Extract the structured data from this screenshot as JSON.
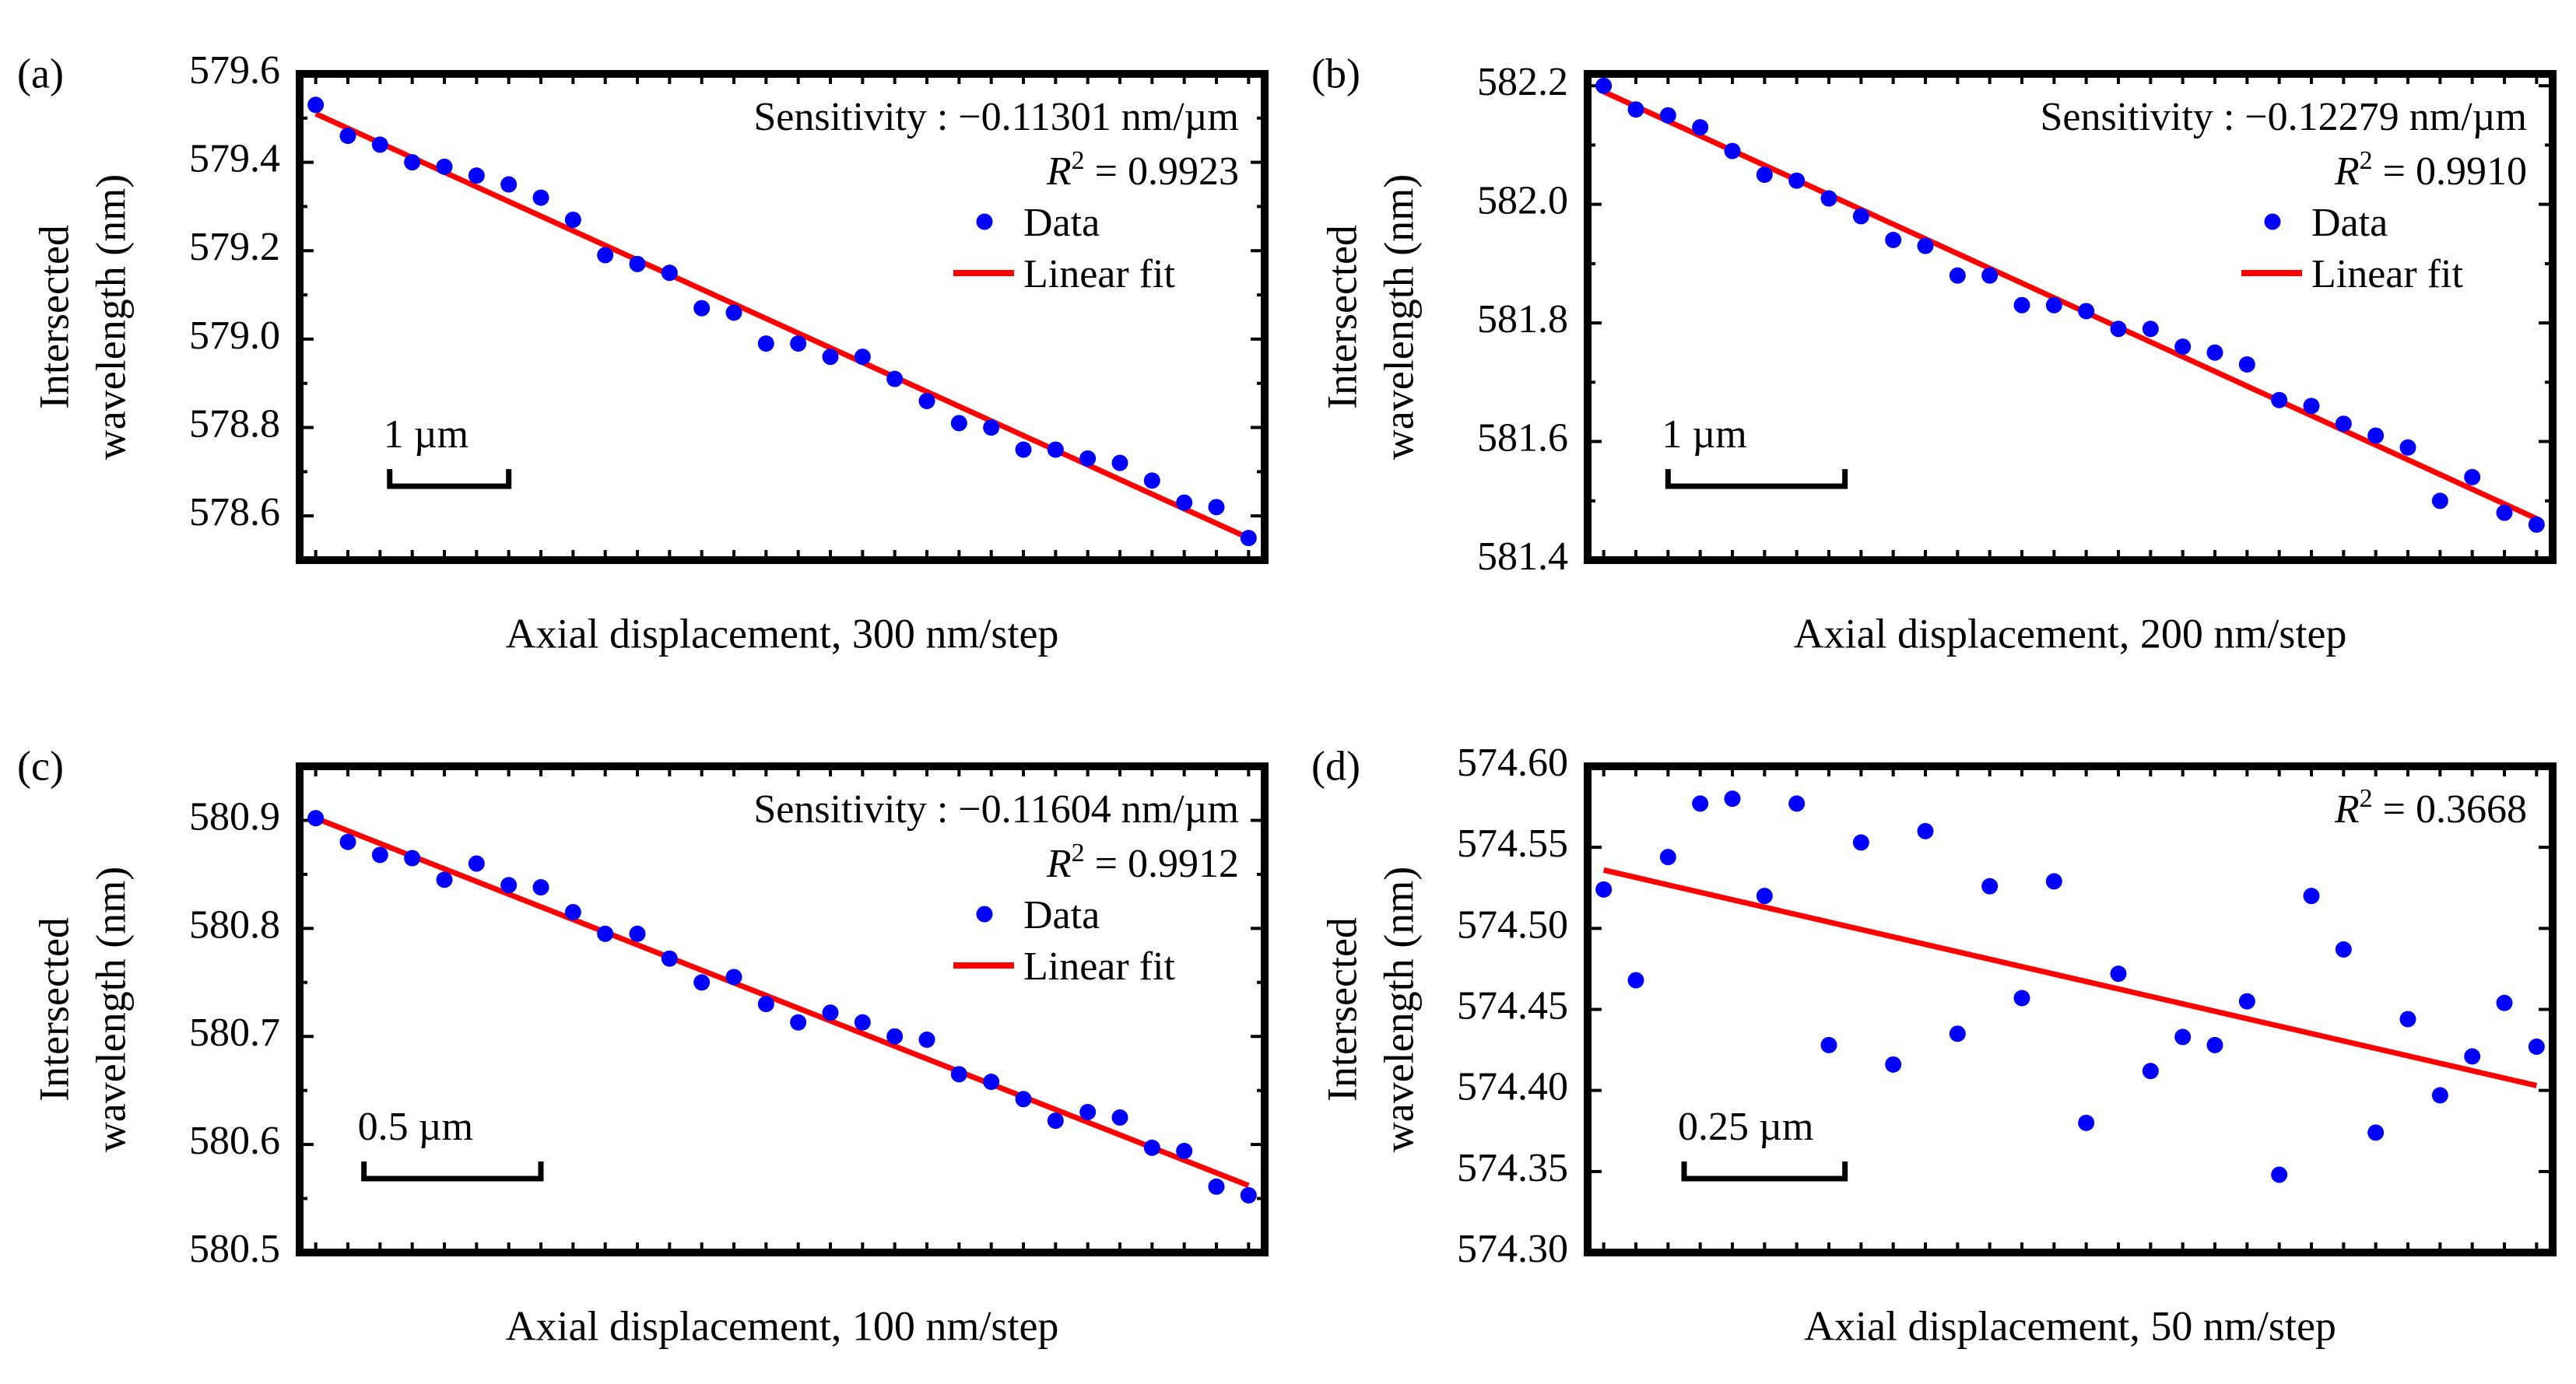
{
  "colors": {
    "data": "#0000ff",
    "fit": "#ff0000",
    "axis": "#000000"
  },
  "chart_data": [
    {
      "panel_label": "(a)",
      "type": "scatter",
      "title": "",
      "xlabel": "Axial displacement, 300 nm/step",
      "ylabel_lines": [
        "Intersected",
        "wavelength (nm)"
      ],
      "xlim": [
        -0.5,
        29.5
      ],
      "ylim": [
        578.5,
        579.6
      ],
      "yticks": [
        578.6,
        578.8,
        579.0,
        579.2,
        579.4,
        579.6
      ],
      "ytick_labels": [
        "578.6",
        "578.8",
        "579.0",
        "579.2",
        "579.4",
        "579.6"
      ],
      "yticks_minor": [
        578.5,
        578.7,
        578.9,
        579.1,
        579.3,
        579.5
      ],
      "scalebar": {
        "label": "1 µm",
        "x_start": 2.3,
        "x_end": 6.0
      },
      "annotations": {
        "sensitivity": "Sensitivity : −0.11301 nm/µm",
        "r2_value": "0.9923"
      },
      "legend": {
        "data": "Data",
        "fit": "Linear fit",
        "position": "top-right"
      },
      "series": [
        {
          "name": "Data",
          "kind": "points",
          "x": [
            0,
            1,
            2,
            3,
            4,
            5,
            6,
            7,
            8,
            9,
            10,
            11,
            12,
            13,
            14,
            15,
            16,
            17,
            18,
            19,
            20,
            21,
            22,
            23,
            24,
            25,
            26,
            27,
            28,
            29
          ],
          "y": [
            579.53,
            579.46,
            579.44,
            579.4,
            579.39,
            579.37,
            579.35,
            579.32,
            579.27,
            579.19,
            579.17,
            579.15,
            579.07,
            579.06,
            578.99,
            578.99,
            578.96,
            578.96,
            578.91,
            578.86,
            578.81,
            578.8,
            578.75,
            578.75,
            578.73,
            578.72,
            578.68,
            578.63,
            578.62,
            578.55
          ]
        },
        {
          "name": "Linear fit",
          "kind": "line",
          "x": [
            0,
            29
          ],
          "y": [
            579.51,
            578.55
          ]
        }
      ]
    },
    {
      "panel_label": "(b)",
      "type": "scatter",
      "title": "",
      "xlabel": "Axial displacement, 200 nm/step",
      "ylabel_lines": [
        "Intersected",
        "wavelength (nm)"
      ],
      "xlim": [
        -0.5,
        29.5
      ],
      "ylim": [
        581.4,
        582.22
      ],
      "yticks": [
        581.4,
        581.6,
        581.8,
        582.0,
        582.2
      ],
      "ytick_labels": [
        "581.4",
        "581.6",
        "581.8",
        "582.0",
        "582.2"
      ],
      "yticks_minor": [
        581.5,
        581.7,
        581.9,
        582.1
      ],
      "scalebar": {
        "label": "1 µm",
        "x_start": 2.0,
        "x_end": 7.5
      },
      "annotations": {
        "sensitivity": "Sensitivity : −0.12279 nm/µm",
        "r2_value": "0.9910"
      },
      "legend": {
        "data": "Data",
        "fit": "Linear fit",
        "position": "top-right"
      },
      "series": [
        {
          "name": "Data",
          "kind": "points",
          "x": [
            0,
            1,
            2,
            3,
            4,
            5,
            6,
            7,
            8,
            9,
            10,
            11,
            12,
            13,
            14,
            15,
            16,
            17,
            18,
            19,
            20,
            21,
            22,
            23,
            24,
            25,
            26,
            27,
            28,
            29
          ],
          "y": [
            582.2,
            582.16,
            582.15,
            582.13,
            582.09,
            582.05,
            582.04,
            582.01,
            581.98,
            581.94,
            581.93,
            581.88,
            581.88,
            581.83,
            581.83,
            581.82,
            581.79,
            581.79,
            581.76,
            581.75,
            581.73,
            581.67,
            581.66,
            581.63,
            581.61,
            581.59,
            581.5,
            581.54,
            581.48,
            581.46
          ]
        },
        {
          "name": "Linear fit",
          "kind": "line",
          "x": [
            0,
            29
          ],
          "y": [
            582.19,
            581.47
          ]
        }
      ]
    },
    {
      "panel_label": "(c)",
      "type": "scatter",
      "title": "",
      "xlabel": "Axial displacement, 100 nm/step",
      "ylabel_lines": [
        "Intersected",
        "wavelength (nm)"
      ],
      "xlim": [
        -0.5,
        29.5
      ],
      "ylim": [
        580.5,
        580.95
      ],
      "yticks": [
        580.5,
        580.6,
        580.7,
        580.8,
        580.9
      ],
      "ytick_labels": [
        "580.5",
        "580.6",
        "580.7",
        "580.8",
        "580.9"
      ],
      "yticks_minor": [
        580.55,
        580.65,
        580.75,
        580.85
      ],
      "scalebar": {
        "label": "0.5 µm",
        "x_start": 1.5,
        "x_end": 7.0
      },
      "annotations": {
        "sensitivity": "Sensitivity : −0.11604 nm/µm",
        "r2_value": "0.9912"
      },
      "legend": {
        "data": "Data",
        "fit": "Linear fit",
        "position": "top-right"
      },
      "series": [
        {
          "name": "Data",
          "kind": "points",
          "x": [
            0,
            1,
            2,
            3,
            4,
            5,
            6,
            7,
            8,
            9,
            10,
            11,
            12,
            13,
            14,
            15,
            16,
            17,
            18,
            19,
            20,
            21,
            22,
            23,
            24,
            25,
            26,
            27,
            28,
            29
          ],
          "y": [
            580.902,
            580.88,
            580.868,
            580.865,
            580.845,
            580.86,
            580.84,
            580.838,
            580.815,
            580.795,
            580.795,
            580.772,
            580.75,
            580.755,
            580.73,
            580.713,
            580.722,
            580.713,
            580.7,
            580.697,
            580.665,
            580.658,
            580.642,
            580.622,
            580.63,
            580.625,
            580.597,
            580.594,
            580.561,
            580.553
          ]
        },
        {
          "name": "Linear fit",
          "kind": "line",
          "x": [
            0,
            29
          ],
          "y": [
            580.902,
            580.562
          ]
        }
      ]
    },
    {
      "panel_label": "(d)",
      "type": "scatter",
      "title": "",
      "xlabel": "Axial displacement, 50 nm/step",
      "ylabel_lines": [
        "Intersected",
        "wavelength (nm)"
      ],
      "xlim": [
        -0.5,
        29.5
      ],
      "ylim": [
        574.3,
        574.6
      ],
      "yticks": [
        574.3,
        574.35,
        574.4,
        574.45,
        574.5,
        574.55,
        574.6
      ],
      "ytick_labels": [
        "574.30",
        "574.35",
        "574.40",
        "574.45",
        "574.50",
        "574.55",
        "574.60"
      ],
      "yticks_minor": [],
      "scalebar": {
        "label": "0.25 µm",
        "x_start": 2.5,
        "x_end": 7.5
      },
      "annotations": {
        "sensitivity": "",
        "r2_value": "0.3668"
      },
      "legend": null,
      "series": [
        {
          "name": "Data",
          "kind": "points",
          "x": [
            0,
            1,
            2,
            3,
            4,
            5,
            6,
            7,
            8,
            9,
            10,
            11,
            12,
            13,
            14,
            15,
            16,
            17,
            18,
            19,
            20,
            21,
            22,
            23,
            24,
            25,
            26,
            27,
            28,
            29
          ],
          "y": [
            574.524,
            574.468,
            574.544,
            574.577,
            574.58,
            574.52,
            574.577,
            574.428,
            574.553,
            574.416,
            574.56,
            574.435,
            574.526,
            574.457,
            574.529,
            574.38,
            574.472,
            574.412,
            574.433,
            574.428,
            574.455,
            574.348,
            574.52,
            574.487,
            574.374,
            574.444,
            574.397,
            574.421,
            574.454,
            574.427
          ]
        },
        {
          "name": "Linear fit",
          "kind": "line",
          "x": [
            0,
            29
          ],
          "y": [
            574.536,
            574.403
          ]
        }
      ]
    }
  ]
}
